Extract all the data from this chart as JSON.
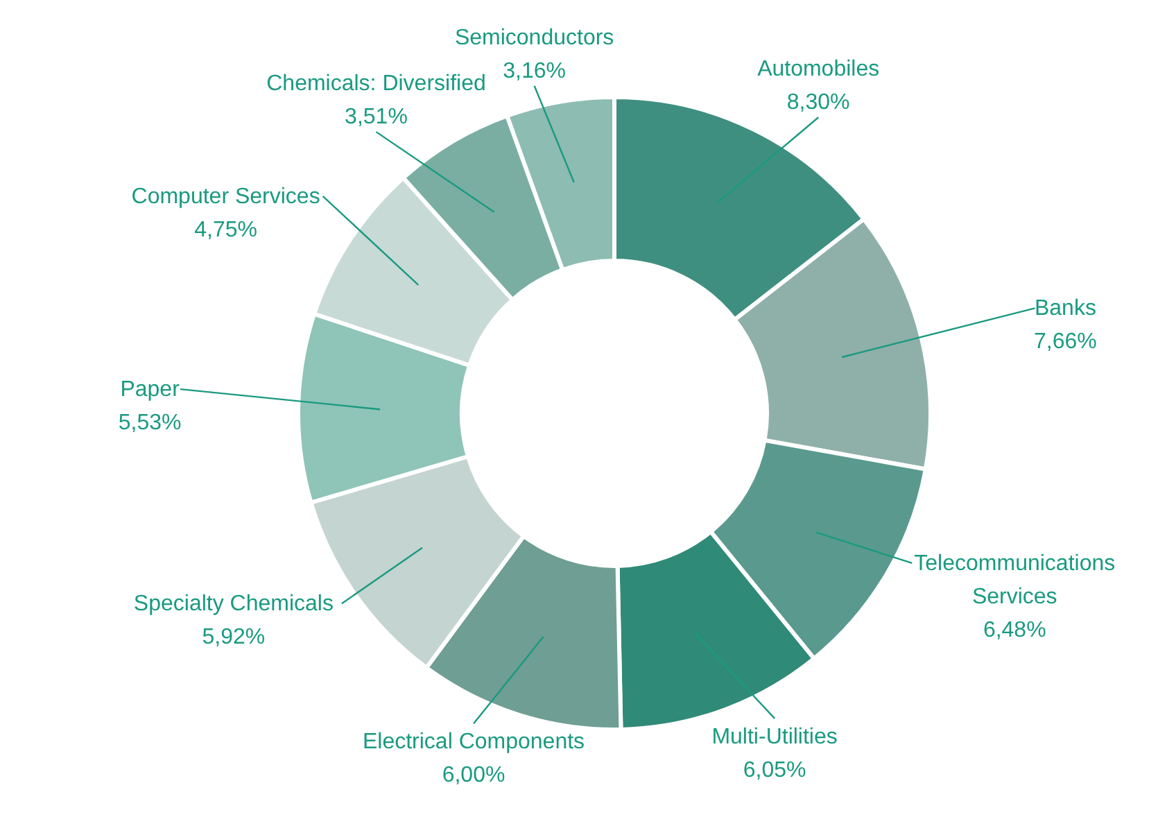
{
  "chart_data": {
    "type": "donut",
    "categories": [
      "Automobiles",
      "Banks",
      "Telecommunications Services",
      "Multi-Utilities",
      "Electrical Components",
      "Specialty Chemicals",
      "Paper",
      "Computer Services",
      "Chemicals: Diversified",
      "Semiconductors"
    ],
    "values": [
      8.3,
      7.66,
      6.48,
      6.05,
      6.0,
      5.92,
      5.53,
      4.75,
      3.51,
      3.16
    ],
    "value_labels": [
      "8,30%",
      "7,66%",
      "6,48%",
      "6,05%",
      "6,00%",
      "5,92%",
      "5,53%",
      "4,75%",
      "3,51%",
      "3,16%"
    ],
    "colors": [
      "#3f8f80",
      "#8fb0a8",
      "#5a9a8e",
      "#2f8a78",
      "#6f9e94",
      "#c4d4d0",
      "#8fc4b8",
      "#c8dad6",
      "#7aaea3",
      "#8cbcb2"
    ]
  }
}
